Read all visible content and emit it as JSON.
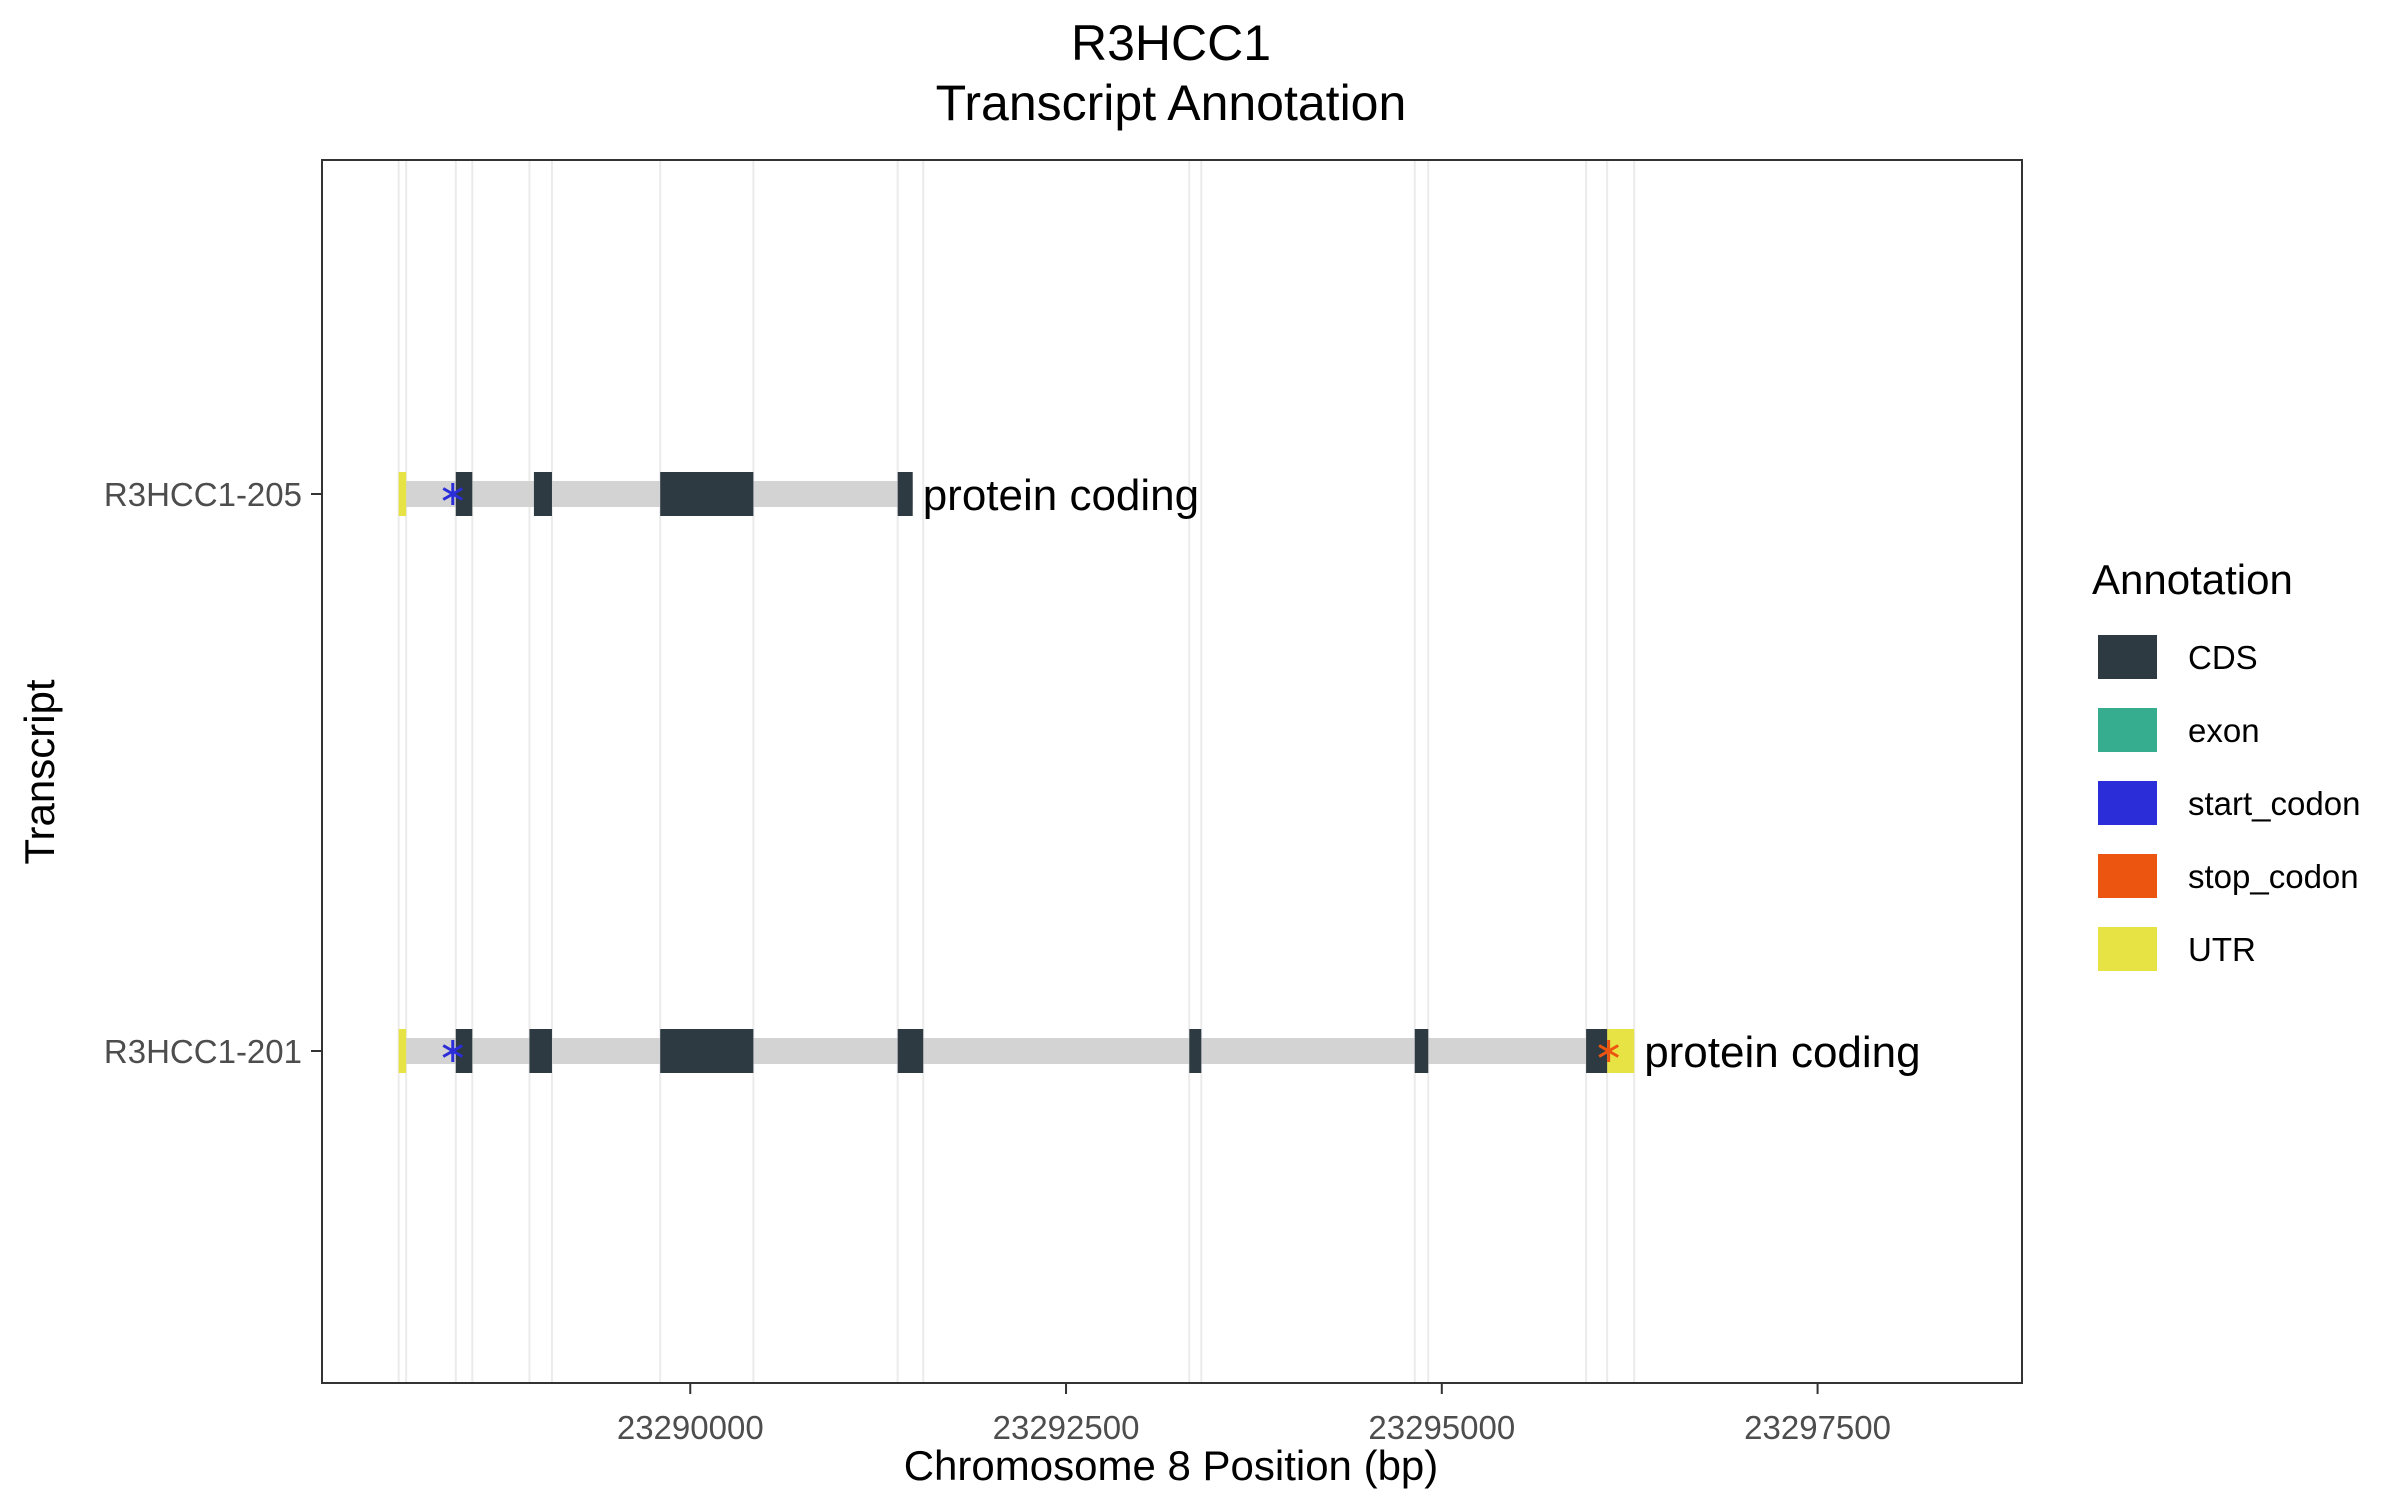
{
  "chart_data": {
    "type": "gene-track",
    "title": "R3HCC1",
    "subtitle": "Transcript Annotation",
    "xlabel": "Chromosome 8 Position (bp)",
    "ylabel": "Transcript",
    "xlim": [
      23287550,
      23298860
    ],
    "xticks": [
      23290000,
      23292500,
      23295000,
      23297500
    ],
    "xtick_labels": [
      "23290000",
      "23292500",
      "23295000",
      "23297500"
    ],
    "grid": true,
    "legend": {
      "title": "Annotation",
      "position": "right",
      "items": [
        {
          "label": "CDS",
          "color": "#2d3a42"
        },
        {
          "label": "exon",
          "color": "#35ad8e"
        },
        {
          "label": "start_codon",
          "color": "#2b2ed8"
        },
        {
          "label": "stop_codon",
          "color": "#ec5510"
        },
        {
          "label": "UTR",
          "color": "#e8e345"
        }
      ]
    },
    "colors": {
      "intron": "#d3d3d3",
      "CDS": "#2d3a42",
      "UTR": "#e8e345",
      "start_codon": "#2b2ed8",
      "stop_codon": "#ec5510"
    },
    "transcripts": [
      {
        "name": "R3HCC1-205",
        "biotype": "protein coding",
        "start": 23288060,
        "end": 23291480,
        "utr": [
          [
            23288060,
            23288110
          ]
        ],
        "cds": [
          [
            23288440,
            23288550
          ],
          [
            23288960,
            23289080
          ],
          [
            23289800,
            23290420
          ],
          [
            23291380,
            23291480
          ]
        ],
        "start_codon": 23288420,
        "stop_codon": null
      },
      {
        "name": "R3HCC1-201",
        "biotype": "protein coding",
        "start": 23288060,
        "end": 23296280,
        "utr": [
          [
            23288060,
            23288110
          ],
          [
            23296100,
            23296280
          ]
        ],
        "cds": [
          [
            23288440,
            23288550
          ],
          [
            23288930,
            23289080
          ],
          [
            23289800,
            23290420
          ],
          [
            23291380,
            23291550
          ],
          [
            23293320,
            23293400
          ],
          [
            23294820,
            23294910
          ],
          [
            23295960,
            23296100
          ]
        ],
        "start_codon": 23288420,
        "stop_codon": 23296110
      }
    ],
    "gridlines": [
      23288060,
      23288110,
      23288440,
      23288550,
      23288930,
      23289080,
      23289800,
      23290420,
      23291380,
      23291550,
      23293320,
      23293400,
      23294820,
      23294910,
      23295960,
      23296100,
      23296280
    ]
  }
}
